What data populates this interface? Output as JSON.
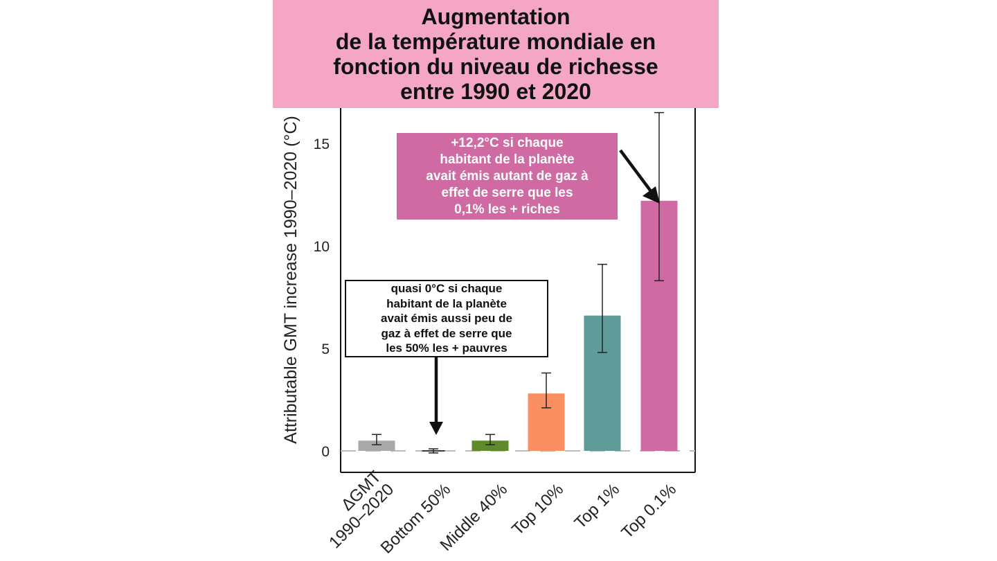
{
  "title": {
    "lines": [
      "Augmentation",
      "de la température mondiale en",
      "fonction du niveau de richesse",
      "entre 1990 et 2020"
    ]
  },
  "callouts": {
    "rich": {
      "lines": [
        "+12,2°C si chaque",
        "habitant de la planète",
        "avait émis autant de gaz à",
        "effet de serre que les",
        "0,1% les + riches"
      ]
    },
    "poor": {
      "lines": [
        "quasi 0°C si chaque",
        "habitant de la planète",
        "avait émis aussi peu de",
        "gaz à effet de serre que",
        "les 50% les + pauvres"
      ]
    }
  },
  "chart_data": {
    "type": "bar",
    "categories": [
      "ΔGMT\n1990–2020",
      "Bottom 50%",
      "Middle 40%",
      "Top 10%",
      "Top 1%",
      "Top 0.1%"
    ],
    "values": [
      0.5,
      0.0,
      0.5,
      2.8,
      6.6,
      12.2
    ],
    "error_low": [
      0.3,
      -0.1,
      0.3,
      2.1,
      4.8,
      8.3
    ],
    "error_high": [
      0.8,
      0.1,
      0.8,
      3.8,
      9.1,
      16.5
    ],
    "colors": [
      "#a9a9a9",
      "#3a3a3a",
      "#5e8a2a",
      "#fa8f62",
      "#5f9b99",
      "#cf6aa3"
    ],
    "ylabel": "Attributable GMT increase 1990–2020 (°C)",
    "ylim": [
      -1,
      17
    ],
    "yticks": [
      0,
      5,
      10,
      15
    ],
    "zero_line": "dashed",
    "grid": false,
    "legend": "none"
  }
}
